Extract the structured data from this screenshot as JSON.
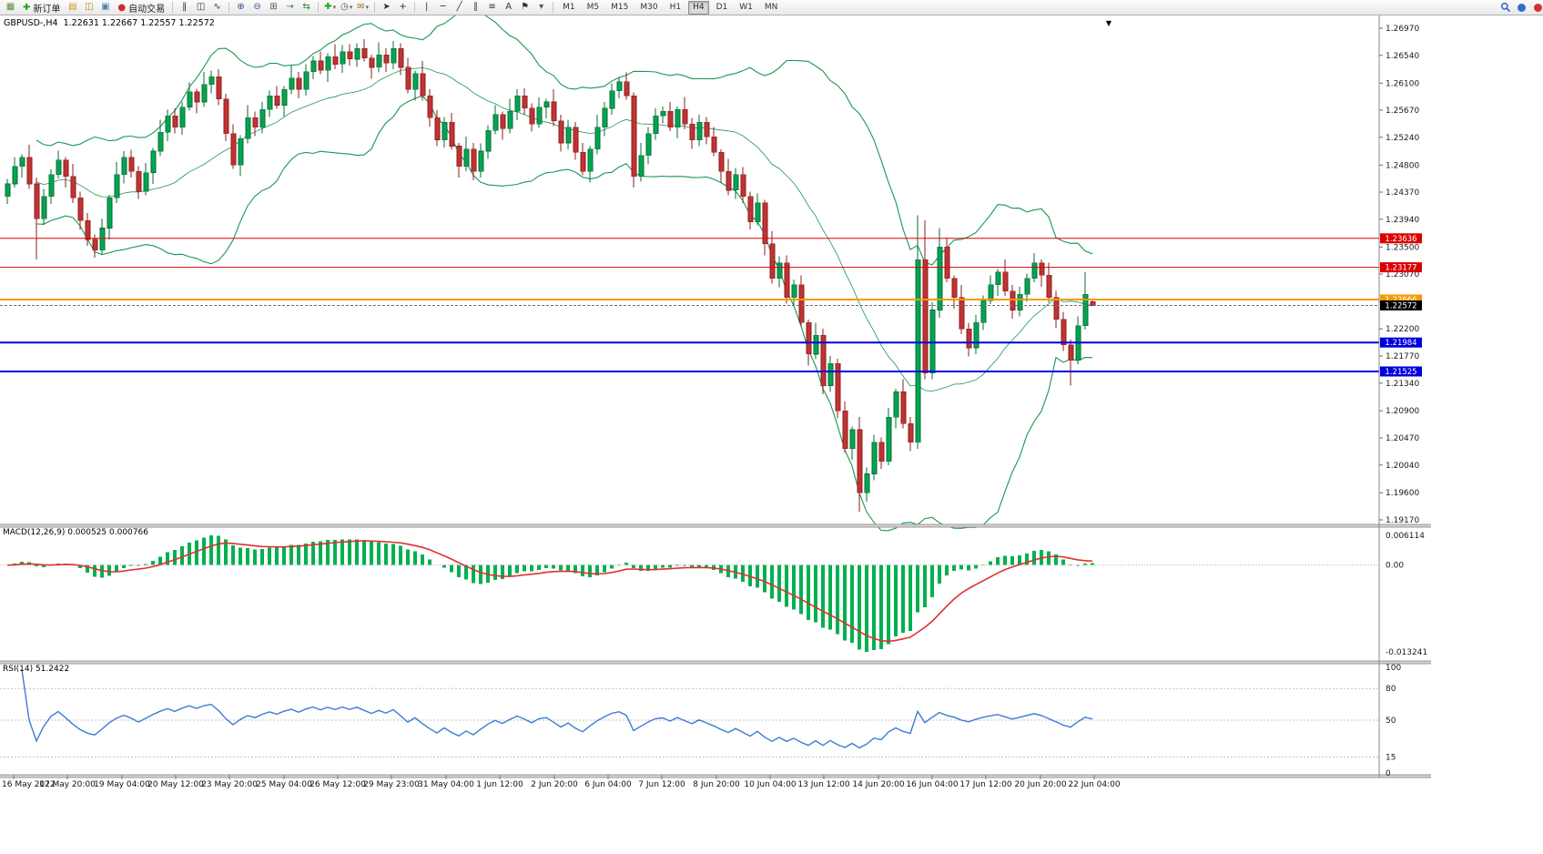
{
  "toolbar": {
    "timeframes": [
      "M1",
      "M5",
      "M15",
      "M30",
      "H1",
      "H4",
      "D1",
      "W1",
      "MN"
    ],
    "active_timeframe": "H4",
    "items": [
      {
        "type": "icon",
        "name": "chart-window-icon",
        "glyph": "▦",
        "color": "#5a8f3c"
      },
      {
        "type": "button",
        "name": "new-order-button",
        "glyph": "✚",
        "color": "#18a818",
        "label": "新订单"
      },
      {
        "type": "icon",
        "name": "market-watch-icon",
        "glyph": "▤",
        "color": "#c79810"
      },
      {
        "type": "icon",
        "name": "data-window-icon",
        "glyph": "◫",
        "color": "#b8860b"
      },
      {
        "type": "icon",
        "name": "navigator-icon",
        "glyph": "▣",
        "color": "#4682b4"
      },
      {
        "type": "button",
        "name": "auto-trading-button",
        "glyph": "●",
        "color": "#d22828",
        "label": "自动交易"
      },
      {
        "type": "sep"
      },
      {
        "type": "icon",
        "name": "bar-chart-icon",
        "glyph": "‖",
        "color": "#333333"
      },
      {
        "type": "icon",
        "name": "candlestick-chart-icon",
        "glyph": "◫",
        "color": "#333333"
      },
      {
        "type": "icon",
        "name": "line-chart-icon",
        "glyph": "∿",
        "color": "#333333"
      },
      {
        "type": "sep"
      },
      {
        "type": "icon",
        "name": "zoom-in-icon",
        "glyph": "⊕",
        "color": "#2f4f8f"
      },
      {
        "type": "icon",
        "name": "zoom-out-icon",
        "glyph": "⊖",
        "color": "#2f4f8f"
      },
      {
        "type": "icon",
        "name": "tile-windows-icon",
        "glyph": "⊞",
        "color": "#555555"
      },
      {
        "type": "icon",
        "name": "auto-scroll-icon",
        "glyph": "→",
        "color": "#2e7d32"
      },
      {
        "type": "icon",
        "name": "chart-shift-icon",
        "glyph": "⇆",
        "color": "#2e7d32"
      },
      {
        "type": "sep"
      },
      {
        "type": "icon",
        "name": "add-indicator-icon",
        "glyph": "✚",
        "color": "#18a818",
        "caret": "▾"
      },
      {
        "type": "icon",
        "name": "periods-icon",
        "glyph": "◷",
        "color": "#555555",
        "caret": "▾"
      },
      {
        "type": "icon",
        "name": "templates-icon",
        "glyph": "✉",
        "color": "#a07820",
        "caret": "▾"
      },
      {
        "type": "sep"
      },
      {
        "type": "icon",
        "name": "cursor-icon",
        "glyph": "➤",
        "color": "#333333"
      },
      {
        "type": "icon",
        "name": "crosshair-icon",
        "glyph": "+",
        "color": "#333333"
      },
      {
        "type": "sep"
      },
      {
        "type": "icon",
        "name": "vertical-line-icon",
        "glyph": "|",
        "color": "#333333"
      },
      {
        "type": "icon",
        "name": "horizontal-line-icon",
        "glyph": "─",
        "color": "#333333"
      },
      {
        "type": "icon",
        "name": "trendline-icon",
        "glyph": "╱",
        "color": "#333333"
      },
      {
        "type": "icon",
        "name": "channel-icon",
        "glyph": "∥",
        "color": "#333333"
      },
      {
        "type": "icon",
        "name": "fibonacci-icon",
        "glyph": "≡",
        "color": "#333333"
      },
      {
        "type": "icon",
        "name": "text-icon",
        "glyph": "A",
        "color": "#333333"
      },
      {
        "type": "icon",
        "name": "label-icon",
        "glyph": "⚑",
        "color": "#333333"
      },
      {
        "type": "icon",
        "name": "shapes-icon",
        "glyph": "▾",
        "color": "#555555"
      },
      {
        "type": "sep"
      },
      {
        "type": "timeframes"
      },
      {
        "type": "spacer"
      },
      {
        "type": "svg-icon",
        "name": "search-icon",
        "color": "#2f6fd0"
      },
      {
        "type": "svg-icon",
        "name": "community-icon",
        "color": "#2f6fd0"
      },
      {
        "type": "svg-icon",
        "name": "notifications-icon",
        "color": "#d03030"
      }
    ]
  },
  "chart": {
    "legend": "GBPUSD-,H4  1.22631 1.22667 1.22557 1.22572",
    "symbol": "GBPUSD-",
    "period": "H4",
    "ohlc": {
      "open": "1.22631",
      "high": "1.22667",
      "low": "1.22557",
      "close": "1.22572"
    },
    "shift_marker": "▼",
    "price_axis": [
      "1.26970",
      "1.26540",
      "1.26100",
      "1.25670",
      "1.25240",
      "1.24800",
      "1.24370",
      "1.23940",
      "1.23500",
      "1.23070",
      "1.22630",
      "1.22200",
      "1.21770",
      "1.21340",
      "1.20900",
      "1.20470",
      "1.20040",
      "1.19600",
      "1.19170"
    ],
    "hlines": [
      {
        "price": 1.23636,
        "label": "1.23636",
        "color": "#dd0000",
        "width": 1
      },
      {
        "price": 1.23177,
        "label": "1.23177",
        "color": "#dd0000",
        "width": 1
      },
      {
        "price": 1.22666,
        "label": "1.22666",
        "color": "#f59a00",
        "width": 2
      },
      {
        "price": 1.21984,
        "label": "1.21984",
        "color": "#0000dd",
        "width": 2
      },
      {
        "price": 1.21525,
        "label": "1.21525",
        "color": "#0000dd",
        "width": 2
      }
    ],
    "bid_line": {
      "price": 1.22572,
      "label": "1.22572",
      "color": "#000000"
    },
    "time_axis": [
      "16 May 2022",
      "17 May 20:00",
      "19 May 04:00",
      "20 May 12:00",
      "23 May 20:00",
      "25 May 04:00",
      "26 May 12:00",
      "29 May 23:00",
      "31 May 04:00",
      "1 Jun 12:00",
      "2 Jun 20:00",
      "6 Jun 04:00",
      "7 Jun 12:00",
      "8 Jun 20:00",
      "10 Jun 04:00",
      "13 Jun 12:00",
      "14 Jun 20:00",
      "16 Jun 04:00",
      "17 Jun 12:00",
      "20 Jun 20:00",
      "22 Jun 04:00"
    ]
  },
  "chart_data": {
    "type": "candlestick",
    "symbol": "GBPUSD",
    "timeframe": "H4",
    "y_range": [
      1.19098,
      1.27187
    ],
    "up_color": "#00a651",
    "down_color": "#c13333",
    "up_border": "#0a6b36",
    "down_border": "#8c1d1d",
    "candles": [
      [
        1.243,
        1.2458,
        1.2418,
        1.245
      ],
      [
        1.245,
        1.2493,
        1.2444,
        1.2478
      ],
      [
        1.2478,
        1.2497,
        1.246,
        1.2492
      ],
      [
        1.2492,
        1.2512,
        1.2442,
        1.245
      ],
      [
        1.245,
        1.246,
        1.233,
        1.2395
      ],
      [
        1.2395,
        1.2442,
        1.2385,
        1.243
      ],
      [
        1.243,
        1.2473,
        1.2418,
        1.2465
      ],
      [
        1.2465,
        1.2503,
        1.2459,
        1.2488
      ],
      [
        1.2488,
        1.2493,
        1.2444,
        1.2462
      ],
      [
        1.2462,
        1.2482,
        1.242,
        1.2428
      ],
      [
        1.2428,
        1.2438,
        1.2378,
        1.2392
      ],
      [
        1.2392,
        1.2404,
        1.2352,
        1.2362
      ],
      [
        1.2362,
        1.237,
        1.2333,
        1.2345
      ],
      [
        1.2345,
        1.2395,
        1.2339,
        1.238
      ],
      [
        1.238,
        1.2433,
        1.2362,
        1.2428
      ],
      [
        1.2428,
        1.2485,
        1.242,
        1.2465
      ],
      [
        1.2465,
        1.2502,
        1.2451,
        1.2492
      ],
      [
        1.2492,
        1.2504,
        1.246,
        1.247
      ],
      [
        1.247,
        1.2478,
        1.2426,
        1.2438
      ],
      [
        1.2438,
        1.2483,
        1.2432,
        1.2468
      ],
      [
        1.2468,
        1.2507,
        1.245,
        1.2502
      ],
      [
        1.2502,
        1.2552,
        1.2494,
        1.2532
      ],
      [
        1.2532,
        1.2568,
        1.2518,
        1.2558
      ],
      [
        1.2558,
        1.257,
        1.253,
        1.254
      ],
      [
        1.254,
        1.258,
        1.2528,
        1.2572
      ],
      [
        1.2572,
        1.2611,
        1.2566,
        1.2596
      ],
      [
        1.2596,
        1.2601,
        1.2562,
        1.258
      ],
      [
        1.258,
        1.2628,
        1.2572,
        1.2608
      ],
      [
        1.2608,
        1.263,
        1.2594,
        1.262
      ],
      [
        1.262,
        1.2632,
        1.2575,
        1.2585
      ],
      [
        1.2585,
        1.2593,
        1.2518,
        1.253
      ],
      [
        1.253,
        1.2545,
        1.2474,
        1.248
      ],
      [
        1.248,
        1.2527,
        1.2462,
        1.2522
      ],
      [
        1.2522,
        1.2575,
        1.2514,
        1.2555
      ],
      [
        1.2555,
        1.2565,
        1.2526,
        1.254
      ],
      [
        1.254,
        1.258,
        1.253,
        1.2568
      ],
      [
        1.2568,
        1.2598,
        1.2556,
        1.259
      ],
      [
        1.259,
        1.2605,
        1.2569,
        1.2575
      ],
      [
        1.2575,
        1.2605,
        1.2557,
        1.26
      ],
      [
        1.26,
        1.2638,
        1.2592,
        1.2618
      ],
      [
        1.2618,
        1.2628,
        1.2586,
        1.26
      ],
      [
        1.26,
        1.264,
        1.259,
        1.2628
      ],
      [
        1.2628,
        1.2653,
        1.2616,
        1.2645
      ],
      [
        1.2645,
        1.266,
        1.2624,
        1.263
      ],
      [
        1.263,
        1.2657,
        1.2612,
        1.2652
      ],
      [
        1.2652,
        1.2672,
        1.2632,
        1.264
      ],
      [
        1.264,
        1.267,
        1.2626,
        1.266
      ],
      [
        1.266,
        1.2672,
        1.2638,
        1.2648
      ],
      [
        1.2648,
        1.2673,
        1.2636,
        1.2665
      ],
      [
        1.2665,
        1.268,
        1.2644,
        1.265
      ],
      [
        1.265,
        1.2655,
        1.2617,
        1.2635
      ],
      [
        1.2635,
        1.2675,
        1.2627,
        1.2655
      ],
      [
        1.2655,
        1.2665,
        1.2628,
        1.2642
      ],
      [
        1.2642,
        1.2677,
        1.2632,
        1.2665
      ],
      [
        1.2665,
        1.2673,
        1.2623,
        1.2635
      ],
      [
        1.2635,
        1.265,
        1.2594,
        1.26
      ],
      [
        1.26,
        1.263,
        1.2582,
        1.2625
      ],
      [
        1.2625,
        1.2645,
        1.2582,
        1.259
      ],
      [
        1.259,
        1.26,
        1.2541,
        1.2555
      ],
      [
        1.2555,
        1.2567,
        1.251,
        1.252
      ],
      [
        1.252,
        1.2556,
        1.2508,
        1.2548
      ],
      [
        1.2548,
        1.2563,
        1.2504,
        1.251
      ],
      [
        1.251,
        1.2515,
        1.246,
        1.2478
      ],
      [
        1.2478,
        1.2525,
        1.247,
        1.2505
      ],
      [
        1.2505,
        1.2515,
        1.2456,
        1.247
      ],
      [
        1.247,
        1.2514,
        1.246,
        1.2502
      ],
      [
        1.2502,
        1.2543,
        1.249,
        1.2535
      ],
      [
        1.2535,
        1.2575,
        1.2529,
        1.256
      ],
      [
        1.256,
        1.2565,
        1.252,
        1.2538
      ],
      [
        1.2538,
        1.2585,
        1.253,
        1.2565
      ],
      [
        1.2565,
        1.26,
        1.2551,
        1.259
      ],
      [
        1.259,
        1.2602,
        1.256,
        1.257
      ],
      [
        1.257,
        1.2578,
        1.2533,
        1.2545
      ],
      [
        1.2545,
        1.2587,
        1.2539,
        1.2572
      ],
      [
        1.2572,
        1.2585,
        1.2554,
        1.258
      ],
      [
        1.258,
        1.26,
        1.2542,
        1.255
      ],
      [
        1.255,
        1.256,
        1.2501,
        1.2515
      ],
      [
        1.2515,
        1.2552,
        1.2505,
        1.254
      ],
      [
        1.254,
        1.2548,
        1.2488,
        1.25
      ],
      [
        1.25,
        1.2515,
        1.2464,
        1.247
      ],
      [
        1.247,
        1.251,
        1.2452,
        1.2505
      ],
      [
        1.2505,
        1.256,
        1.2497,
        1.254
      ],
      [
        1.254,
        1.258,
        1.2526,
        1.257
      ],
      [
        1.257,
        1.261,
        1.256,
        1.2598
      ],
      [
        1.2598,
        1.262,
        1.2586,
        1.2612
      ],
      [
        1.2612,
        1.2627,
        1.2584,
        1.259
      ],
      [
        1.259,
        1.2595,
        1.2444,
        1.2462
      ],
      [
        1.2462,
        1.2515,
        1.2454,
        1.2495
      ],
      [
        1.2495,
        1.254,
        1.2481,
        1.253
      ],
      [
        1.253,
        1.257,
        1.252,
        1.2558
      ],
      [
        1.2558,
        1.2573,
        1.2546,
        1.2565
      ],
      [
        1.2565,
        1.258,
        1.2534,
        1.254
      ],
      [
        1.254,
        1.2573,
        1.2522,
        1.2568
      ],
      [
        1.2568,
        1.2588,
        1.2537,
        1.2545
      ],
      [
        1.2545,
        1.2555,
        1.2506,
        1.252
      ],
      [
        1.252,
        1.256,
        1.251,
        1.2548
      ],
      [
        1.2548,
        1.2556,
        1.2513,
        1.2525
      ],
      [
        1.2525,
        1.254,
        1.2494,
        1.25
      ],
      [
        1.25,
        1.2505,
        1.2452,
        1.247
      ],
      [
        1.247,
        1.249,
        1.2432,
        1.244
      ],
      [
        1.244,
        1.2475,
        1.2426,
        1.2465
      ],
      [
        1.2465,
        1.2477,
        1.242,
        1.243
      ],
      [
        1.243,
        1.2438,
        1.2378,
        1.239
      ],
      [
        1.239,
        1.2435,
        1.2384,
        1.242
      ],
      [
        1.242,
        1.2425,
        1.2337,
        1.2355
      ],
      [
        1.2355,
        1.2375,
        1.2292,
        1.23
      ],
      [
        1.23,
        1.2335,
        1.2286,
        1.2325
      ],
      [
        1.2325,
        1.2337,
        1.226,
        1.227
      ],
      [
        1.227,
        1.2298,
        1.2258,
        1.229
      ],
      [
        1.229,
        1.2305,
        1.2224,
        1.223
      ],
      [
        1.223,
        1.2235,
        1.2162,
        1.218
      ],
      [
        1.218,
        1.223,
        1.2172,
        1.221
      ],
      [
        1.221,
        1.222,
        1.2116,
        1.213
      ],
      [
        1.213,
        1.2177,
        1.212,
        1.2165
      ],
      [
        1.2165,
        1.2173,
        1.2078,
        1.209
      ],
      [
        1.209,
        1.2105,
        1.2024,
        1.203
      ],
      [
        1.203,
        1.2065,
        1.2012,
        1.206
      ],
      [
        1.206,
        1.208,
        1.193,
        1.196
      ],
      [
        1.196,
        1.2,
        1.1946,
        1.199
      ],
      [
        1.199,
        1.2052,
        1.198,
        1.204
      ],
      [
        1.204,
        1.2048,
        1.1998,
        1.201
      ],
      [
        1.201,
        1.2095,
        1.2004,
        1.208
      ],
      [
        1.208,
        1.2125,
        1.2062,
        1.212
      ],
      [
        1.212,
        1.214,
        1.2062,
        1.207
      ],
      [
        1.207,
        1.208,
        1.2026,
        1.204
      ],
      [
        1.204,
        1.24,
        1.203,
        1.233
      ],
      [
        1.233,
        1.2392,
        1.214,
        1.215
      ],
      [
        1.215,
        1.2262,
        1.214,
        1.225
      ],
      [
        1.225,
        1.238,
        1.2238,
        1.235
      ],
      [
        1.235,
        1.2365,
        1.2294,
        1.23
      ],
      [
        1.23,
        1.2305,
        1.2252,
        1.227
      ],
      [
        1.227,
        1.229,
        1.2212,
        1.222
      ],
      [
        1.222,
        1.223,
        1.2176,
        1.219
      ],
      [
        1.219,
        1.2242,
        1.218,
        1.223
      ],
      [
        1.223,
        1.2273,
        1.2218,
        1.2265
      ],
      [
        1.2265,
        1.2305,
        1.2259,
        1.229
      ],
      [
        1.229,
        1.2315,
        1.2272,
        1.231
      ],
      [
        1.231,
        1.233,
        1.2272,
        1.228
      ],
      [
        1.228,
        1.229,
        1.2236,
        1.225
      ],
      [
        1.225,
        1.2287,
        1.224,
        1.2275
      ],
      [
        1.2275,
        1.2308,
        1.2263,
        1.23
      ],
      [
        1.23,
        1.234,
        1.2294,
        1.2325
      ],
      [
        1.2325,
        1.233,
        1.2287,
        1.2305
      ],
      [
        1.2305,
        1.2325,
        1.2262,
        1.227
      ],
      [
        1.227,
        1.228,
        1.2221,
        1.2235
      ],
      [
        1.2235,
        1.2247,
        1.2185,
        1.2195
      ],
      [
        1.2195,
        1.2203,
        1.213,
        1.217
      ],
      [
        1.217,
        1.224,
        1.2164,
        1.2225
      ],
      [
        1.2225,
        1.231,
        1.2219,
        1.2275
      ],
      [
        1.22631,
        1.22667,
        1.22557,
        1.22572
      ]
    ],
    "indicators": {
      "bollinger": {
        "period": 20,
        "deviation": 2,
        "color": "#1a9850"
      },
      "macd": {
        "fast": 12,
        "slow": 26,
        "signal": 9,
        "label": "MACD(12,26,9) 0.000525 0.000766",
        "main_value": "0.000525",
        "signal_value": "0.000766",
        "axis": [
          "0.006114",
          "0.00",
          "-0.013241"
        ],
        "hist_color": "#00b050",
        "signal_color": "#e03030"
      },
      "rsi": {
        "period": 14,
        "label": "RSI(14) 51.2422",
        "value": "51.2422",
        "axis": [
          "100",
          "80",
          "50",
          "15",
          "0"
        ],
        "levels": [
          80,
          50,
          15
        ],
        "color": "#3d7bd6"
      }
    }
  }
}
